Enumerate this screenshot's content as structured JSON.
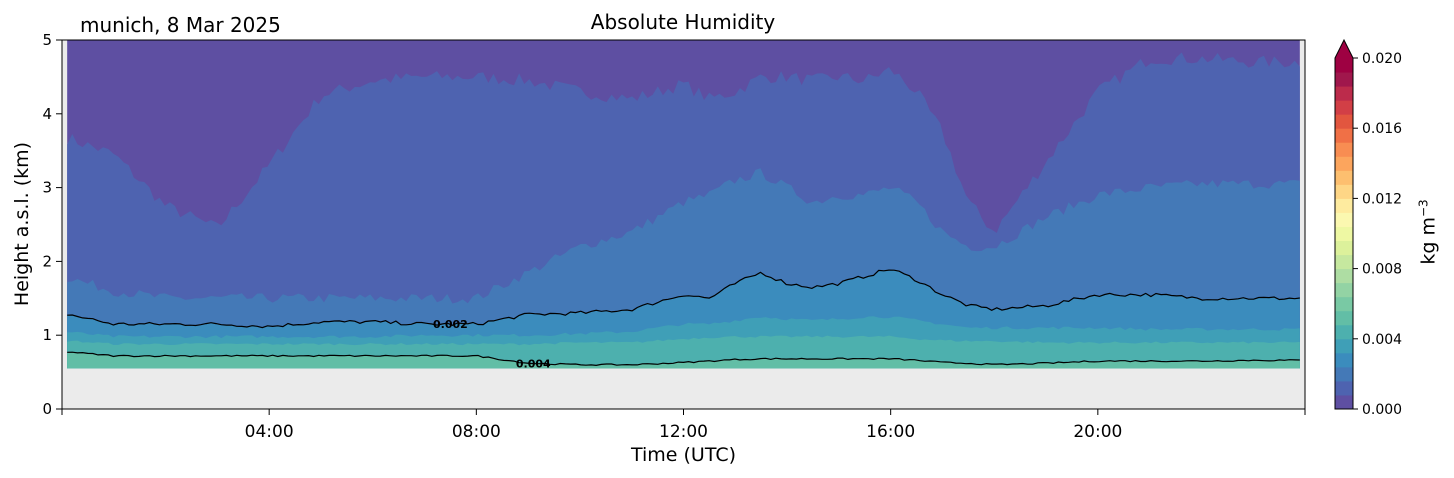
{
  "header": {
    "site_label": "munich, 8 Mar 2025"
  },
  "chart_data": {
    "type": "contourf",
    "title": "Absolute Humidity",
    "xlabel": "Time (UTC)",
    "ylabel": "Height a.s.l. (km)",
    "xlim_hours": [
      0,
      24
    ],
    "ylim_km": [
      0,
      5
    ],
    "x_ticks": [
      "04:00",
      "08:00",
      "12:00",
      "16:00",
      "20:00"
    ],
    "y_ticks": [
      "0",
      "1",
      "2",
      "3",
      "4",
      "5"
    ],
    "no_data_below_km": 0.55,
    "no_data_color": "#ebebeb",
    "colorbar": {
      "label_base": "kg m",
      "label_exp": "−3",
      "range": [
        0,
        0.02
      ],
      "extend": "max",
      "ticks": [
        "0.000",
        "0.004",
        "0.008",
        "0.012",
        "0.016",
        "0.020"
      ],
      "colors": [
        "#5e4fa2",
        "#4e63b0",
        "#4479b7",
        "#3b8cbd",
        "#3f9fb7",
        "#4db0ae",
        "#62bea6",
        "#79c9a4",
        "#93d3a4",
        "#aedda3",
        "#c6e89f",
        "#dcf19b",
        "#eef8a3",
        "#fbf8b0",
        "#feeb9f",
        "#fed686",
        "#fdbf6f",
        "#fca55d",
        "#f88d52",
        "#f07046",
        "#e2563f",
        "#d23f46",
        "#bc2b4b",
        "#a0174c",
        "#9e0142"
      ],
      "extend_color": "#9e0142"
    },
    "levels": [
      {
        "upper": 0.0008,
        "color": "#5e4fa2"
      },
      {
        "upper": 0.0016,
        "color": "#4e63b0"
      },
      {
        "upper": 0.0024,
        "color": "#4479b7"
      },
      {
        "upper": 0.0032,
        "color": "#3b8cbd"
      },
      {
        "upper": 0.004,
        "color": "#3f9fb7"
      },
      {
        "upper": 0.0048,
        "color": "#4db0ae"
      },
      {
        "upper": 0.0056,
        "color": "#62bea6"
      }
    ],
    "contour_lines": [
      {
        "value": 0.002,
        "label": "0.002",
        "label_at_hours": 7.5
      },
      {
        "value": 0.004,
        "label": "0.004",
        "label_at_hours": 9.1
      }
    ],
    "isoline_heights_km": {
      "hours": [
        0,
        1,
        2,
        3,
        4,
        5,
        6,
        7,
        8,
        9,
        10,
        11,
        12,
        12.5,
        13,
        13.5,
        14,
        14.5,
        15,
        15.5,
        16,
        16.5,
        17,
        17.5,
        18,
        19,
        20,
        21,
        22,
        23,
        24
      ],
      "0.0008": [
        3.7,
        3.45,
        2.75,
        2.45,
        3.3,
        4.25,
        4.45,
        4.5,
        4.5,
        4.45,
        4.3,
        4.2,
        4.4,
        4.2,
        4.3,
        4.5,
        4.5,
        4.45,
        4.5,
        4.45,
        4.6,
        4.3,
        3.75,
        2.8,
        2.4,
        3.35,
        4.3,
        4.75,
        4.75,
        4.7,
        4.7
      ],
      "0.0016": [
        1.8,
        1.6,
        1.5,
        1.5,
        1.5,
        1.5,
        1.5,
        1.5,
        1.5,
        1.85,
        2.2,
        2.4,
        2.8,
        2.9,
        3.1,
        3.2,
        3.0,
        2.8,
        2.9,
        2.9,
        3.0,
        2.8,
        2.4,
        2.2,
        2.2,
        2.6,
        2.9,
        3.0,
        3.05,
        3.05,
        3.05
      ],
      "0.0024": [
        1.3,
        1.15,
        1.15,
        1.15,
        1.12,
        1.18,
        1.18,
        1.15,
        1.15,
        1.28,
        1.3,
        1.35,
        1.55,
        1.5,
        1.7,
        1.85,
        1.7,
        1.65,
        1.7,
        1.8,
        1.9,
        1.75,
        1.55,
        1.4,
        1.35,
        1.4,
        1.55,
        1.55,
        1.5,
        1.5,
        1.5
      ],
      "0.0032": [
        1.05,
        0.98,
        0.98,
        0.98,
        0.98,
        0.98,
        0.98,
        1.0,
        1.0,
        1.0,
        1.02,
        1.05,
        1.15,
        1.15,
        1.2,
        1.25,
        1.22,
        1.2,
        1.22,
        1.25,
        1.25,
        1.2,
        1.15,
        1.1,
        1.1,
        1.1,
        1.1,
        1.08,
        1.08,
        1.08,
        1.08
      ],
      "0.0040": [
        0.93,
        0.88,
        0.88,
        0.88,
        0.88,
        0.88,
        0.88,
        0.88,
        0.88,
        0.88,
        0.9,
        0.9,
        0.95,
        0.97,
        0.98,
        0.98,
        0.98,
        0.98,
        0.98,
        0.98,
        0.98,
        0.95,
        0.93,
        0.92,
        0.92,
        0.9,
        0.9,
        0.9,
        0.9,
        0.9,
        0.9
      ],
      "0.0048": [
        0.78,
        0.72,
        0.72,
        0.72,
        0.72,
        0.72,
        0.72,
        0.72,
        0.72,
        0.62,
        0.6,
        0.6,
        0.63,
        0.65,
        0.67,
        0.68,
        0.68,
        0.68,
        0.68,
        0.68,
        0.68,
        0.66,
        0.63,
        0.62,
        0.6,
        0.62,
        0.65,
        0.65,
        0.65,
        0.66,
        0.66
      ]
    }
  }
}
